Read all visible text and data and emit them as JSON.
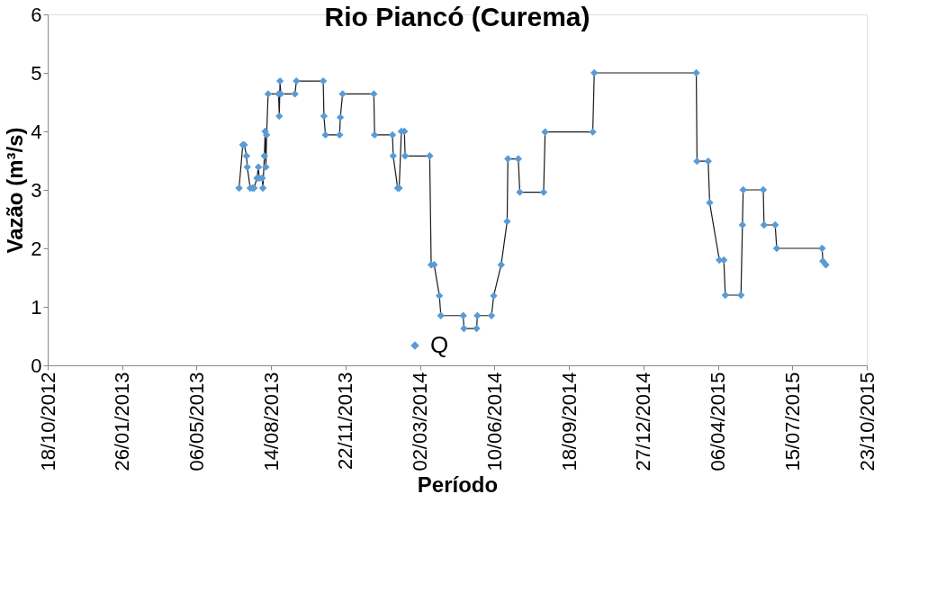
{
  "chart_data": {
    "type": "line",
    "title": "Rio Piancó (Curema)",
    "xlabel": "Período",
    "ylabel": "Vazão (m³/s)",
    "xlim": [
      "2012-10-18",
      "2015-10-23"
    ],
    "xticks": [
      {
        "value": "2012-10-18",
        "label": "18/10/2012"
      },
      {
        "value": "2013-01-26",
        "label": "26/01/2013"
      },
      {
        "value": "2013-05-06",
        "label": "06/05/2013"
      },
      {
        "value": "2013-08-14",
        "label": "14/08/2013"
      },
      {
        "value": "2013-11-22",
        "label": "22/11/2013"
      },
      {
        "value": "2014-03-02",
        "label": "02/03/2014"
      },
      {
        "value": "2014-06-10",
        "label": "10/06/2014"
      },
      {
        "value": "2014-09-18",
        "label": "18/09/2014"
      },
      {
        "value": "2014-12-27",
        "label": "27/12/2014"
      },
      {
        "value": "2015-04-06",
        "label": "06/04/2015"
      },
      {
        "value": "2015-07-15",
        "label": "15/07/2015"
      },
      {
        "value": "2015-10-23",
        "label": "23/10/2015"
      }
    ],
    "ylim": [
      0,
      6
    ],
    "yticks": [
      0,
      1,
      2,
      3,
      4,
      5,
      6
    ],
    "grid": false,
    "legend": "bottom",
    "marker": "diamond",
    "line_style": "solid",
    "series": [
      {
        "name": "Q",
        "color": "#5b9bd5",
        "x": [
          "2013-07-02",
          "2013-07-07",
          "2013-07-09",
          "2013-07-12",
          "2013-07-13",
          "2013-07-17",
          "2013-07-20",
          "2013-07-22",
          "2013-07-26",
          "2013-07-28",
          "2013-07-29",
          "2013-08-02",
          "2013-08-03",
          "2013-08-05",
          "2013-08-06",
          "2013-08-07",
          "2013-08-08",
          "2013-08-10",
          "2013-08-24",
          "2013-08-25",
          "2013-08-26",
          "2013-08-27",
          "2013-09-15",
          "2013-09-17",
          "2013-10-23",
          "2013-10-24",
          "2013-10-26",
          "2013-11-14",
          "2013-11-15",
          "2013-11-18",
          "2013-12-30",
          "2013-12-31",
          "2014-01-24",
          "2014-01-25",
          "2014-01-31",
          "2014-02-02",
          "2014-02-05",
          "2014-02-09",
          "2014-02-10",
          "2014-03-15",
          "2014-03-17",
          "2014-03-21",
          "2014-03-28",
          "2014-03-30",
          "2014-04-29",
          "2014-04-30",
          "2014-05-17",
          "2014-05-18",
          "2014-06-06",
          "2014-06-09",
          "2014-06-19",
          "2014-06-27",
          "2014-06-28",
          "2014-07-12",
          "2014-07-14",
          "2014-08-15",
          "2014-08-17",
          "2014-10-20",
          "2014-10-22",
          "2015-03-08",
          "2015-03-09",
          "2015-03-24",
          "2015-03-26",
          "2015-04-08",
          "2015-04-14",
          "2015-04-16",
          "2015-05-07",
          "2015-05-09",
          "2015-05-10",
          "2015-06-06",
          "2015-06-07",
          "2015-06-22",
          "2015-06-24",
          "2015-08-24",
          "2015-08-25",
          "2015-08-29"
        ],
        "values": [
          3.03,
          3.77,
          3.77,
          3.58,
          3.39,
          3.03,
          3.03,
          3.03,
          3.2,
          3.39,
          3.2,
          3.2,
          3.03,
          3.58,
          4.0,
          3.39,
          3.94,
          4.64,
          4.64,
          4.26,
          4.86,
          4.64,
          4.64,
          4.86,
          4.86,
          4.26,
          3.94,
          3.94,
          4.24,
          4.64,
          4.64,
          3.94,
          3.94,
          3.58,
          3.03,
          3.03,
          4.0,
          4.0,
          3.58,
          3.58,
          1.72,
          1.72,
          1.19,
          0.85,
          0.85,
          0.63,
          0.63,
          0.85,
          0.85,
          1.19,
          1.72,
          2.46,
          3.53,
          3.53,
          2.96,
          2.96,
          3.99,
          3.99,
          5.0,
          5.0,
          3.49,
          3.49,
          2.78,
          1.8,
          1.8,
          1.2,
          1.2,
          2.4,
          3.0,
          3.0,
          2.4,
          2.4,
          2.0,
          2.0,
          1.78,
          1.72
        ]
      }
    ]
  }
}
